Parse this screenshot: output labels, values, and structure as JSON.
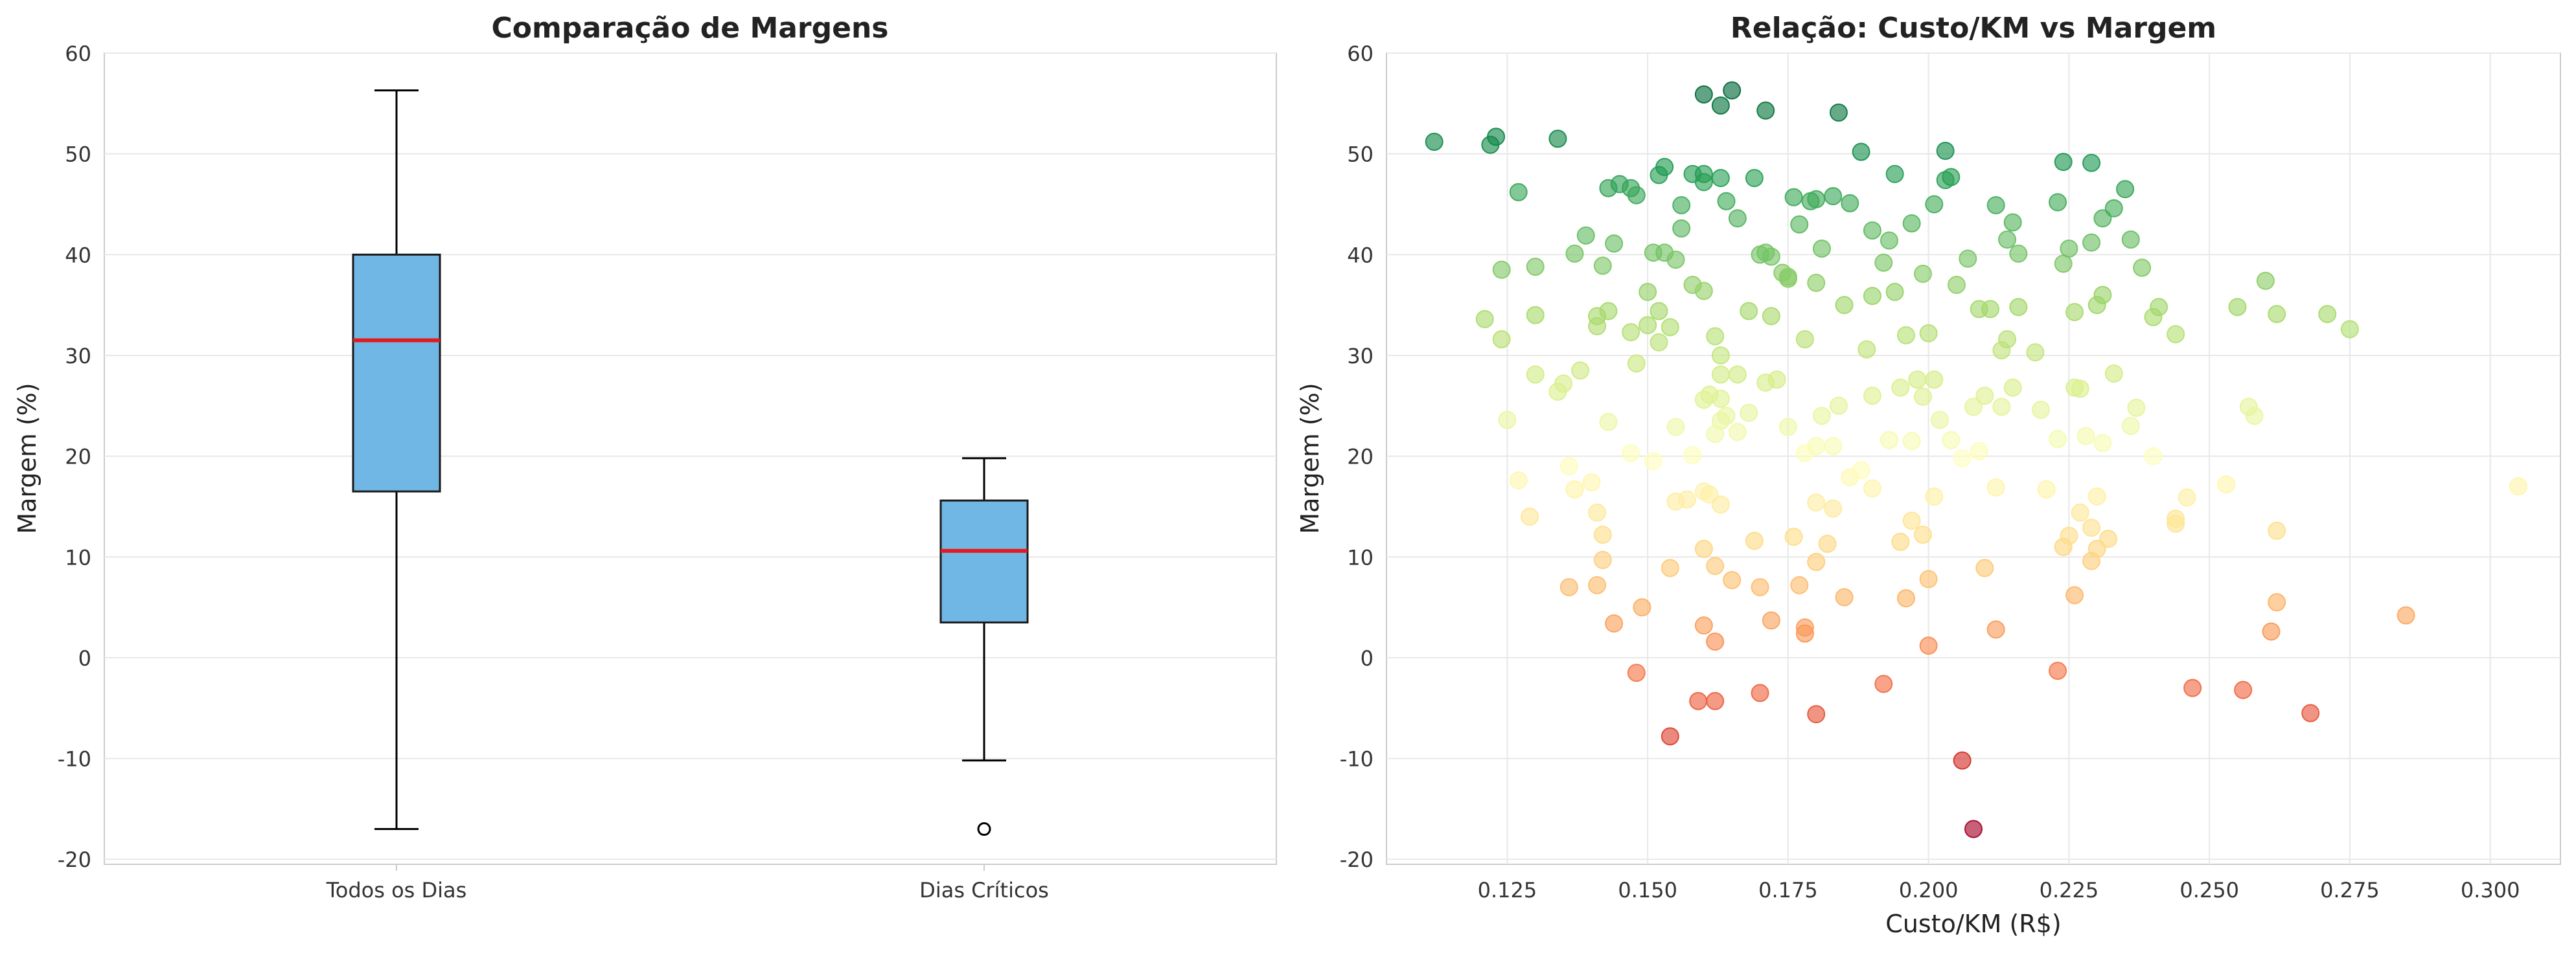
{
  "chart_data": [
    {
      "type": "box",
      "title": "Comparação de Margens",
      "xlabel": "",
      "ylabel": "Margem (%)",
      "ylim": [
        -20.5,
        60
      ],
      "yticks": [
        -20,
        -10,
        0,
        10,
        20,
        30,
        40,
        50,
        60
      ],
      "grid": true,
      "box_color": "#5DADE2",
      "median_color": "#E31A1C",
      "categories": [
        "Todos os Dias",
        "Dias Críticos"
      ],
      "boxes": [
        {
          "whisker_low": -17.0,
          "q1": 16.5,
          "median": 31.5,
          "q3": 40.0,
          "whisker_high": 56.3,
          "outliers": []
        },
        {
          "whisker_low": -10.2,
          "q1": 3.5,
          "median": 10.6,
          "q3": 15.6,
          "whisker_high": 19.8,
          "outliers": [
            -17.0
          ]
        }
      ]
    },
    {
      "type": "scatter",
      "title": "Relação: Custo/KM vs Margem",
      "xlabel": "Custo/KM (R$)",
      "ylabel": "Margem (%)",
      "xlim": [
        0.1035,
        0.3125
      ],
      "ylim": [
        -20.5,
        60
      ],
      "xticks": [
        "0.125",
        "0.150",
        "0.175",
        "0.200",
        "0.225",
        "0.250",
        "0.275",
        "0.300"
      ],
      "yticks": [
        -20,
        -10,
        0,
        10,
        20,
        30,
        40,
        50,
        60
      ],
      "grid": true,
      "colormap": "RdYlGn",
      "points": [
        [
          0.112,
          51.2
        ],
        [
          0.122,
          50.9
        ],
        [
          0.123,
          51.7
        ],
        [
          0.134,
          51.5
        ],
        [
          0.127,
          46.2
        ],
        [
          0.124,
          38.5
        ],
        [
          0.13,
          38.8
        ],
        [
          0.121,
          33.6
        ],
        [
          0.124,
          31.6
        ],
        [
          0.13,
          34.0
        ],
        [
          0.125,
          23.6
        ],
        [
          0.127,
          17.6
        ],
        [
          0.129,
          14.0
        ],
        [
          0.13,
          28.1
        ],
        [
          0.135,
          27.2
        ],
        [
          0.134,
          26.4
        ],
        [
          0.136,
          19.0
        ],
        [
          0.137,
          16.7
        ],
        [
          0.14,
          17.4
        ],
        [
          0.141,
          14.4
        ],
        [
          0.142,
          12.2
        ],
        [
          0.142,
          9.7
        ],
        [
          0.141,
          7.2
        ],
        [
          0.136,
          7.0
        ],
        [
          0.144,
          3.4
        ],
        [
          0.149,
          5.0
        ],
        [
          0.148,
          -1.5
        ],
        [
          0.154,
          -7.8
        ],
        [
          0.159,
          -4.3
        ],
        [
          0.162,
          -4.3
        ],
        [
          0.17,
          -3.5
        ],
        [
          0.18,
          -5.6
        ],
        [
          0.192,
          -2.6
        ],
        [
          0.206,
          -10.2
        ],
        [
          0.208,
          -17.0
        ],
        [
          0.137,
          40.1
        ],
        [
          0.139,
          41.9
        ],
        [
          0.143,
          46.6
        ],
        [
          0.145,
          47.0
        ],
        [
          0.147,
          46.6
        ],
        [
          0.148,
          45.9
        ],
        [
          0.142,
          38.9
        ],
        [
          0.144,
          41.1
        ],
        [
          0.147,
          32.3
        ],
        [
          0.141,
          32.9
        ],
        [
          0.141,
          33.9
        ],
        [
          0.143,
          34.4
        ],
        [
          0.148,
          29.2
        ],
        [
          0.15,
          36.3
        ],
        [
          0.152,
          34.4
        ],
        [
          0.15,
          33.0
        ],
        [
          0.152,
          31.3
        ],
        [
          0.154,
          32.8
        ],
        [
          0.153,
          40.2
        ],
        [
          0.155,
          39.5
        ],
        [
          0.151,
          40.2
        ],
        [
          0.156,
          42.6
        ],
        [
          0.158,
          37.0
        ],
        [
          0.16,
          36.4
        ],
        [
          0.162,
          31.9
        ],
        [
          0.163,
          30.0
        ],
        [
          0.163,
          28.1
        ],
        [
          0.166,
          28.1
        ],
        [
          0.161,
          26.1
        ],
        [
          0.16,
          25.6
        ],
        [
          0.163,
          23.5
        ],
        [
          0.164,
          24.0
        ],
        [
          0.162,
          22.2
        ],
        [
          0.158,
          20.1
        ],
        [
          0.155,
          22.9
        ],
        [
          0.155,
          15.5
        ],
        [
          0.157,
          15.7
        ],
        [
          0.16,
          16.5
        ],
        [
          0.161,
          16.2
        ],
        [
          0.163,
          15.2
        ],
        [
          0.162,
          9.1
        ],
        [
          0.165,
          7.7
        ],
        [
          0.16,
          10.8
        ],
        [
          0.16,
          3.2
        ],
        [
          0.162,
          1.6
        ],
        [
          0.154,
          8.9
        ],
        [
          0.169,
          11.6
        ],
        [
          0.17,
          7.0
        ],
        [
          0.172,
          3.7
        ],
        [
          0.177,
          7.2
        ],
        [
          0.178,
          3.0
        ],
        [
          0.178,
          2.4
        ],
        [
          0.185,
          6.0
        ],
        [
          0.176,
          12.0
        ],
        [
          0.18,
          9.5
        ],
        [
          0.182,
          11.3
        ],
        [
          0.183,
          14.8
        ],
        [
          0.18,
          15.4
        ],
        [
          0.19,
          16.8
        ],
        [
          0.197,
          13.6
        ],
        [
          0.195,
          11.5
        ],
        [
          0.199,
          12.2
        ],
        [
          0.196,
          5.9
        ],
        [
          0.2,
          7.8
        ],
        [
          0.2,
          1.2
        ],
        [
          0.21,
          8.9
        ],
        [
          0.212,
          2.8
        ],
        [
          0.212,
          16.9
        ],
        [
          0.221,
          16.7
        ],
        [
          0.223,
          -1.3
        ],
        [
          0.224,
          11.0
        ],
        [
          0.225,
          12.1
        ],
        [
          0.226,
          6.2
        ],
        [
          0.227,
          14.4
        ],
        [
          0.229,
          9.6
        ],
        [
          0.229,
          12.9
        ],
        [
          0.23,
          10.8
        ],
        [
          0.23,
          16.0
        ],
        [
          0.232,
          11.8
        ],
        [
          0.244,
          13.3
        ],
        [
          0.244,
          13.8
        ],
        [
          0.246,
          15.9
        ],
        [
          0.247,
          -3.0
        ],
        [
          0.253,
          17.2
        ],
        [
          0.256,
          -3.2
        ],
        [
          0.261,
          2.6
        ],
        [
          0.262,
          5.5
        ],
        [
          0.262,
          12.6
        ],
        [
          0.268,
          -5.5
        ],
        [
          0.285,
          4.2
        ],
        [
          0.305,
          17.0
        ],
        [
          0.163,
          25.7
        ],
        [
          0.166,
          22.4
        ],
        [
          0.168,
          24.3
        ],
        [
          0.171,
          27.3
        ],
        [
          0.173,
          27.6
        ],
        [
          0.175,
          22.9
        ],
        [
          0.178,
          20.3
        ],
        [
          0.18,
          21.0
        ],
        [
          0.181,
          24.0
        ],
        [
          0.183,
          21.0
        ],
        [
          0.184,
          25.0
        ],
        [
          0.186,
          17.9
        ],
        [
          0.188,
          18.6
        ],
        [
          0.19,
          26.0
        ],
        [
          0.193,
          21.6
        ],
        [
          0.195,
          26.8
        ],
        [
          0.197,
          21.5
        ],
        [
          0.198,
          27.6
        ],
        [
          0.199,
          25.9
        ],
        [
          0.201,
          27.6
        ],
        [
          0.201,
          16.0
        ],
        [
          0.202,
          23.6
        ],
        [
          0.204,
          21.6
        ],
        [
          0.206,
          19.8
        ],
        [
          0.208,
          24.9
        ],
        [
          0.209,
          20.5
        ],
        [
          0.21,
          26.0
        ],
        [
          0.213,
          24.9
        ],
        [
          0.215,
          26.8
        ],
        [
          0.22,
          24.6
        ],
        [
          0.223,
          21.7
        ],
        [
          0.226,
          26.8
        ],
        [
          0.228,
          22.0
        ],
        [
          0.231,
          21.3
        ],
        [
          0.236,
          23.0
        ],
        [
          0.237,
          24.8
        ],
        [
          0.24,
          20.0
        ],
        [
          0.257,
          24.9
        ],
        [
          0.258,
          24.0
        ],
        [
          0.158,
          48.0
        ],
        [
          0.152,
          47.9
        ],
        [
          0.153,
          48.7
        ],
        [
          0.156,
          44.9
        ],
        [
          0.16,
          47.2
        ],
        [
          0.16,
          48.0
        ],
        [
          0.163,
          47.6
        ],
        [
          0.164,
          45.3
        ],
        [
          0.166,
          43.6
        ],
        [
          0.169,
          47.6
        ],
        [
          0.17,
          40.0
        ],
        [
          0.171,
          40.2
        ],
        [
          0.172,
          39.8
        ],
        [
          0.174,
          38.2
        ],
        [
          0.175,
          37.8
        ],
        [
          0.176,
          45.7
        ],
        [
          0.177,
          43.0
        ],
        [
          0.179,
          45.3
        ],
        [
          0.18,
          45.5
        ],
        [
          0.181,
          40.6
        ],
        [
          0.183,
          45.8
        ],
        [
          0.186,
          45.1
        ],
        [
          0.188,
          50.2
        ],
        [
          0.19,
          42.4
        ],
        [
          0.192,
          39.2
        ],
        [
          0.193,
          41.4
        ],
        [
          0.194,
          48.0
        ],
        [
          0.197,
          43.1
        ],
        [
          0.199,
          38.1
        ],
        [
          0.201,
          45.0
        ],
        [
          0.203,
          47.4
        ],
        [
          0.204,
          47.7
        ],
        [
          0.207,
          39.6
        ],
        [
          0.211,
          34.6
        ],
        [
          0.212,
          44.9
        ],
        [
          0.214,
          41.5
        ],
        [
          0.215,
          43.2
        ],
        [
          0.216,
          40.1
        ],
        [
          0.223,
          45.2
        ],
        [
          0.224,
          39.1
        ],
        [
          0.225,
          40.6
        ],
        [
          0.229,
          41.2
        ],
        [
          0.231,
          43.6
        ],
        [
          0.233,
          44.6
        ],
        [
          0.235,
          46.5
        ],
        [
          0.236,
          41.5
        ],
        [
          0.238,
          38.7
        ],
        [
          0.16,
          55.9
        ],
        [
          0.163,
          54.8
        ],
        [
          0.165,
          56.3
        ],
        [
          0.171,
          54.3
        ],
        [
          0.184,
          54.1
        ],
        [
          0.203,
          50.3
        ],
        [
          0.224,
          49.2
        ],
        [
          0.229,
          49.1
        ],
        [
          0.168,
          34.4
        ],
        [
          0.172,
          33.9
        ],
        [
          0.175,
          37.6
        ],
        [
          0.178,
          31.6
        ],
        [
          0.18,
          37.2
        ],
        [
          0.185,
          35.0
        ],
        [
          0.189,
          30.6
        ],
        [
          0.19,
          35.9
        ],
        [
          0.194,
          36.3
        ],
        [
          0.196,
          32.0
        ],
        [
          0.2,
          32.2
        ],
        [
          0.205,
          37.0
        ],
        [
          0.209,
          34.6
        ],
        [
          0.213,
          30.5
        ],
        [
          0.214,
          31.6
        ],
        [
          0.216,
          34.8
        ],
        [
          0.219,
          30.3
        ],
        [
          0.226,
          34.3
        ],
        [
          0.227,
          26.7
        ],
        [
          0.23,
          35.0
        ],
        [
          0.231,
          36.0
        ],
        [
          0.233,
          28.2
        ],
        [
          0.24,
          33.8
        ],
        [
          0.241,
          34.8
        ],
        [
          0.244,
          32.1
        ],
        [
          0.255,
          34.8
        ],
        [
          0.262,
          34.1
        ],
        [
          0.271,
          34.1
        ],
        [
          0.275,
          32.6
        ],
        [
          0.26,
          37.4
        ],
        [
          0.138,
          28.5
        ],
        [
          0.143,
          23.4
        ],
        [
          0.147,
          20.3
        ],
        [
          0.151,
          19.5
        ]
      ]
    }
  ]
}
